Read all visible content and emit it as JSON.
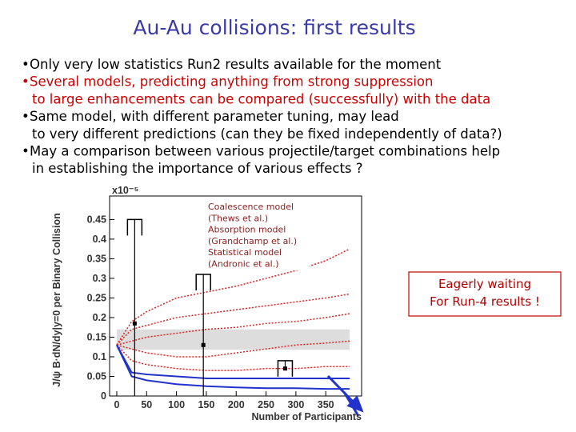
{
  "header": {
    "title": "Au-Au collisions: first results"
  },
  "bullets": [
    {
      "color": "#000000",
      "lines": [
        "Only very low statistics Run2 results available for the moment"
      ]
    },
    {
      "color": "#cc0000",
      "lines": [
        "Several models, predicting anything from strong suppression",
        "to large enhancements can be compared (successfully) with the data"
      ]
    },
    {
      "color": "#000000",
      "lines": [
        "Same model, with different parameter tuning, may lead",
        "to very different predictions (can they be fixed independently of data?)"
      ]
    },
    {
      "color": "#000000",
      "lines": [
        "May a comparison between various projectile/target combinations help",
        "in establishing the importance of various effects ?"
      ]
    }
  ],
  "figure": {
    "y_label": "J/ψ B·dN/dy|y=0 per Binary Collision",
    "y_scale": "x10⁻⁵",
    "x_label": "Number of Participants",
    "xlim": [
      -12,
      410
    ],
    "ylim": [
      0,
      0.51
    ],
    "xticks": [
      0,
      50,
      100,
      150,
      200,
      250,
      300,
      350
    ],
    "yticks": [
      0,
      0.05,
      0.1,
      0.15,
      0.2,
      0.25,
      0.3,
      0.35,
      0.4,
      0.45
    ],
    "band": [
      0.118,
      0.17
    ],
    "x": [
      0,
      25,
      50,
      100,
      150,
      200,
      250,
      300,
      350,
      390
    ],
    "series": [
      {
        "color": "#dd2222",
        "style": "dotted",
        "values": [
          0.13,
          0.19,
          0.215,
          0.25,
          0.265,
          0.28,
          0.3,
          0.32,
          0.345,
          0.375
        ]
      },
      {
        "color": "#dd2222",
        "style": "dotted",
        "values": [
          0.13,
          0.17,
          0.18,
          0.2,
          0.21,
          0.22,
          0.23,
          0.24,
          0.25,
          0.26
        ]
      },
      {
        "color": "#dd2222",
        "style": "dotted",
        "values": [
          0.13,
          0.14,
          0.15,
          0.16,
          0.17,
          0.175,
          0.185,
          0.19,
          0.2,
          0.21
        ]
      },
      {
        "color": "#dd2222",
        "style": "dotted",
        "values": [
          0.13,
          0.12,
          0.11,
          0.1,
          0.1,
          0.11,
          0.12,
          0.13,
          0.135,
          0.14
        ]
      },
      {
        "color": "#dd2222",
        "style": "dotted",
        "values": [
          0.13,
          0.09,
          0.08,
          0.07,
          0.065,
          0.065,
          0.07,
          0.07,
          0.075,
          0.075
        ]
      },
      {
        "color": "#2233cc",
        "style": "solid",
        "values": [
          0.13,
          0.06,
          0.055,
          0.05,
          0.045,
          0.045,
          0.045,
          0.045,
          0.045,
          0.045
        ]
      },
      {
        "color": "#2233cc",
        "style": "solid",
        "values": [
          0.13,
          0.05,
          0.04,
          0.03,
          0.025,
          0.022,
          0.02,
          0.02,
          0.018,
          0.018
        ]
      }
    ],
    "points": [
      {
        "x": 30,
        "y": 0.185,
        "low": 0,
        "high": 0.45
      },
      {
        "x": 145,
        "y": 0.13,
        "low": 0,
        "high": 0.31
      },
      {
        "x": 282,
        "y": 0.07,
        "low": 0.07,
        "high": 0.09
      }
    ],
    "legend": [
      "Coalescence model",
      "(Thews et al.)",
      "Absorption model",
      "(Grandchamp et al.)",
      "Statistical model",
      "(Andronic et al.)"
    ]
  },
  "callout": [
    "Eagerly waiting",
    "For Run-4 results !"
  ]
}
